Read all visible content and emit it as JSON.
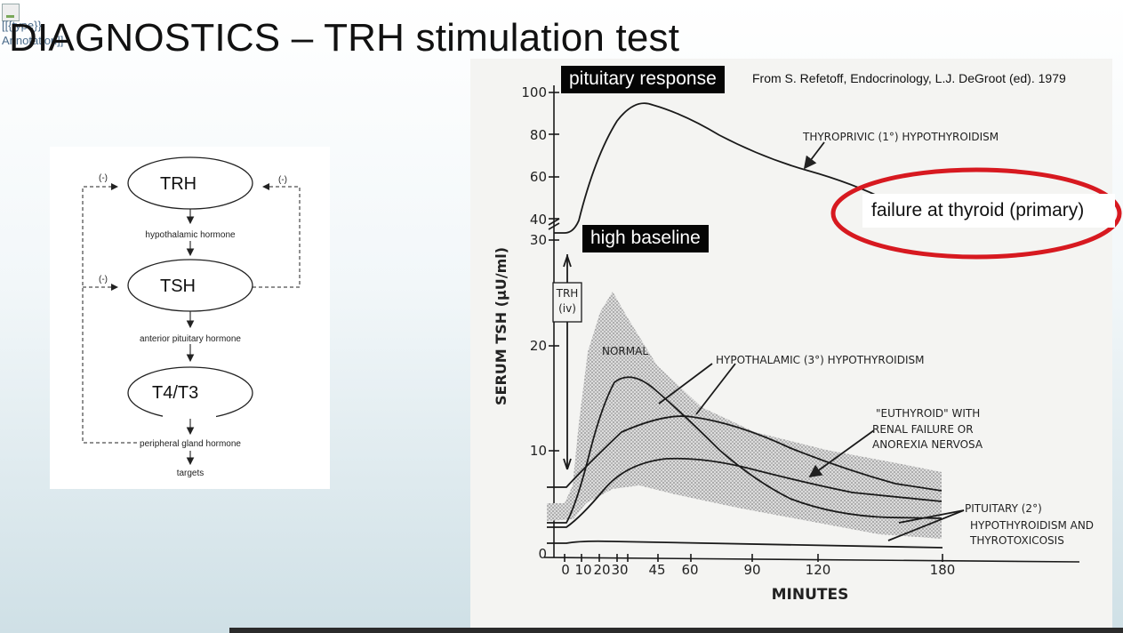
{
  "slide": {
    "title": "DIAGNOSTICS – TRH stimulation test",
    "broken_image_alt": "[[{type}} Annotation]]",
    "labels": {
      "pituitary_response": "pituitary response",
      "high_baseline": "high baseline",
      "citation": "From S. Refetoff, Endocrinology, L.J. DeGroot (ed). 1979",
      "callout": "failure at thyroid (primary)"
    },
    "callout_ring_color": "#d71920"
  },
  "hpt_axis": {
    "nodes": [
      "TRH",
      "TSH",
      "T4/T3"
    ],
    "captions": [
      "hypothalamic hormone",
      "anterior pituitary hormone",
      "peripheral gland hormone",
      "targets"
    ],
    "feedback_sign": "(-)"
  },
  "figure": {
    "y_axis_label": "SERUM TSH (μU/ml)",
    "x_axis_label": "MINUTES",
    "x_ticks": [
      "0",
      "10",
      "20",
      "30",
      "45",
      "60",
      "90",
      "120",
      "180"
    ],
    "y_ticks_lower": [
      "0",
      "10",
      "20",
      "30"
    ],
    "y_ticks_upper": [
      "40",
      "60",
      "80",
      "100"
    ],
    "trh_box": [
      "TRH",
      "(iv)"
    ],
    "curve_labels": {
      "thyroprivic": "THYROPRIVIC (1°) HYPOTHYROIDISM",
      "normal": "NORMAL",
      "hypothalamic": "HYPOTHALAMIC (3°) HYPOTHYROIDISM",
      "euthyroid": [
        "\"EUTHYROID\" WITH",
        "RENAL FAILURE  OR",
        "ANOREXIA NERVOSA"
      ],
      "pituitary": [
        "PITUITARY (2°)",
        "HYPOTHYROIDISM AND",
        "THYROTOXICOSIS"
      ]
    }
  }
}
